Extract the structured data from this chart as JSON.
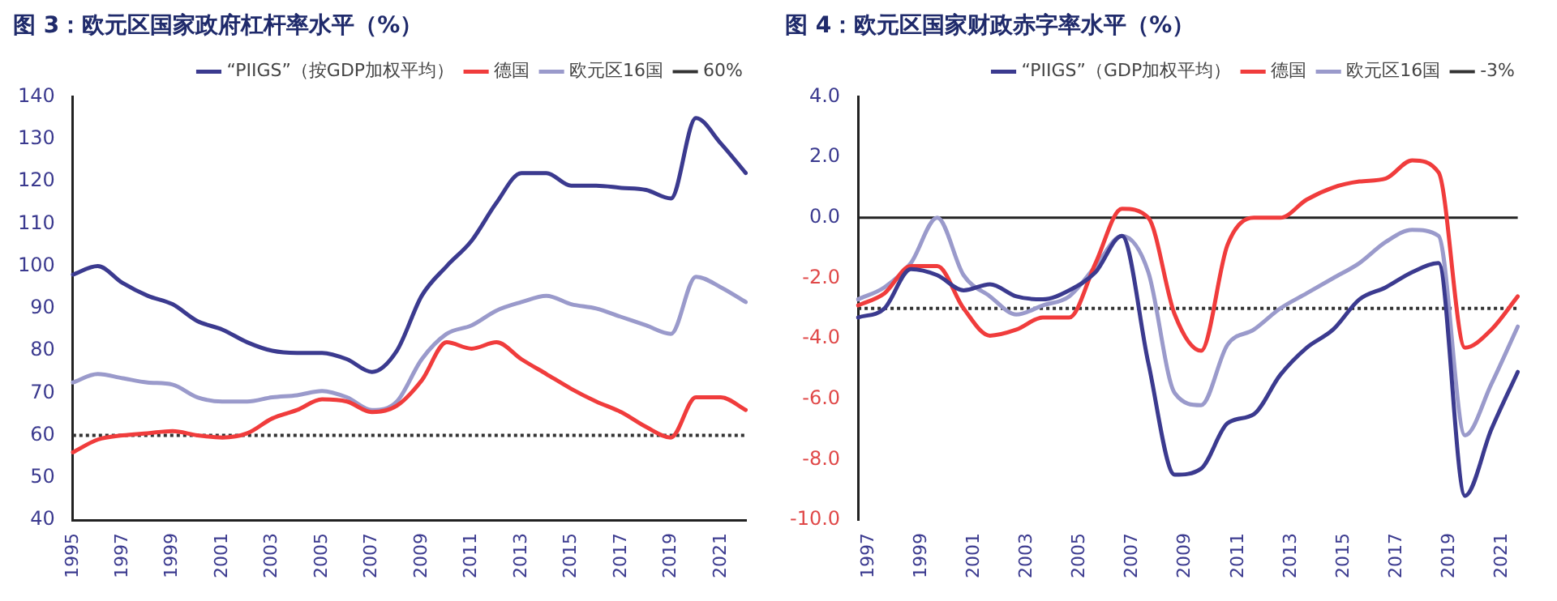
{
  "chart_data": [
    {
      "type": "line",
      "title": "图 3：欧元区国家政府杠杆率水平（%）",
      "categories": [
        "1995",
        null,
        "1997",
        null,
        "1999",
        null,
        "2001",
        null,
        "2003",
        null,
        "2005",
        null,
        "2007",
        null,
        "2009",
        null,
        "2011",
        null,
        "2013",
        null,
        "2015",
        null,
        "2017",
        null,
        "2019",
        null,
        "2021",
        null
      ],
      "series": [
        {
          "name": "“PIIGS”（按GDP加权平均）",
          "color": "#3b3a8f",
          "values": [
            98,
            100,
            96,
            93,
            91,
            87,
            85,
            82,
            80,
            79.5,
            79.5,
            78,
            75,
            80,
            93,
            100,
            106,
            115,
            122,
            122,
            119,
            119,
            118.5,
            118,
            116,
            135,
            129,
            122
          ]
        },
        {
          "name": "德国",
          "color": "#f03c3c",
          "values": [
            56,
            59,
            60,
            60.5,
            61,
            60,
            59.5,
            60.5,
            64,
            66,
            68.5,
            68,
            65.5,
            67,
            73,
            82,
            80.5,
            82,
            78,
            74.5,
            71,
            68,
            65.5,
            62,
            59.5,
            69,
            69,
            66
          ]
        },
        {
          "name": "欧元区16国",
          "color": "#9a9acb",
          "values": [
            72.5,
            74.5,
            73.5,
            72.5,
            72,
            69,
            68,
            68,
            69,
            69.5,
            70.5,
            69,
            66,
            68,
            78,
            84,
            86,
            89.5,
            91.5,
            93,
            91,
            90,
            88,
            86,
            84,
            97.5,
            95,
            91.5
          ]
        }
      ],
      "ref_lines": [
        {
          "axis": "y",
          "value": 60,
          "label": "60%",
          "color": "#333333",
          "line_style": "dotted"
        }
      ],
      "ylim": [
        40,
        140
      ],
      "yticks": [
        40,
        50,
        60,
        70,
        80,
        90,
        100,
        110,
        120,
        130,
        140
      ],
      "grid": false,
      "legend": "top",
      "marker": "none",
      "line_style": "solid"
    },
    {
      "type": "line",
      "title": "图 4：欧元区国家财政赤字率水平（%）",
      "categories": [
        "1997",
        null,
        "1999",
        null,
        "2001",
        null,
        "2003",
        null,
        "2005",
        null,
        "2007",
        null,
        "2009",
        null,
        "2011",
        null,
        "2013",
        null,
        "2015",
        null,
        "2017",
        null,
        "2019",
        null,
        "2021",
        null
      ],
      "series": [
        {
          "name": "“PIIGS”（GDP加权平均）",
          "color": "#3b3a8f",
          "values": [
            -3.3,
            -3.0,
            -1.7,
            -1.9,
            -2.4,
            -2.2,
            -2.6,
            -2.7,
            -2.4,
            -1.8,
            -0.6,
            -4.8,
            -8.5,
            -8.3,
            -6.8,
            -6.5,
            -5.2,
            -4.3,
            -3.7,
            -2.7,
            -2.3,
            -1.8,
            -1.5,
            -9.2,
            -7.0,
            -5.1
          ]
        },
        {
          "name": "德国",
          "color": "#f03c3c",
          "values": [
            -2.9,
            -2.5,
            -1.6,
            -1.6,
            -3.0,
            -3.9,
            -3.7,
            -3.3,
            -3.3,
            -1.5,
            0.3,
            0.0,
            -3.2,
            -4.4,
            -0.9,
            0.0,
            0.0,
            0.6,
            1.0,
            1.2,
            1.3,
            1.9,
            1.5,
            -4.3,
            -3.7,
            -2.6
          ]
        },
        {
          "name": "欧元区16国",
          "color": "#9a9acb",
          "values": [
            -2.7,
            -2.3,
            -1.5,
            0.0,
            -1.9,
            -2.6,
            -3.2,
            -2.9,
            -2.6,
            -1.6,
            -0.6,
            -1.8,
            -5.8,
            -6.2,
            -4.2,
            -3.7,
            -3.0,
            -2.5,
            -2.0,
            -1.5,
            -0.8,
            -0.4,
            -0.6,
            -7.2,
            -5.5,
            -3.6
          ]
        }
      ],
      "ref_lines": [
        {
          "axis": "y",
          "value": -3,
          "label": "-3%",
          "color": "#333333",
          "line_style": "dotted"
        },
        {
          "axis": "y",
          "value": 0,
          "color": "#222222",
          "line_style": "solid"
        }
      ],
      "ylim": [
        -10,
        4
      ],
      "yticks": [
        {
          "value": -10,
          "label": "-10.0"
        },
        {
          "value": -8,
          "label": "-8.0"
        },
        {
          "value": -6,
          "label": "-6.0"
        },
        {
          "value": -4,
          "label": "-4.0"
        },
        {
          "value": -2,
          "label": "-2.0"
        },
        {
          "value": 0,
          "label": "0.0"
        },
        {
          "value": 2,
          "label": "2.0"
        },
        {
          "value": 4,
          "label": "4.0"
        }
      ],
      "grid": false,
      "legend": "top",
      "marker": "none",
      "line_style": "solid"
    }
  ]
}
